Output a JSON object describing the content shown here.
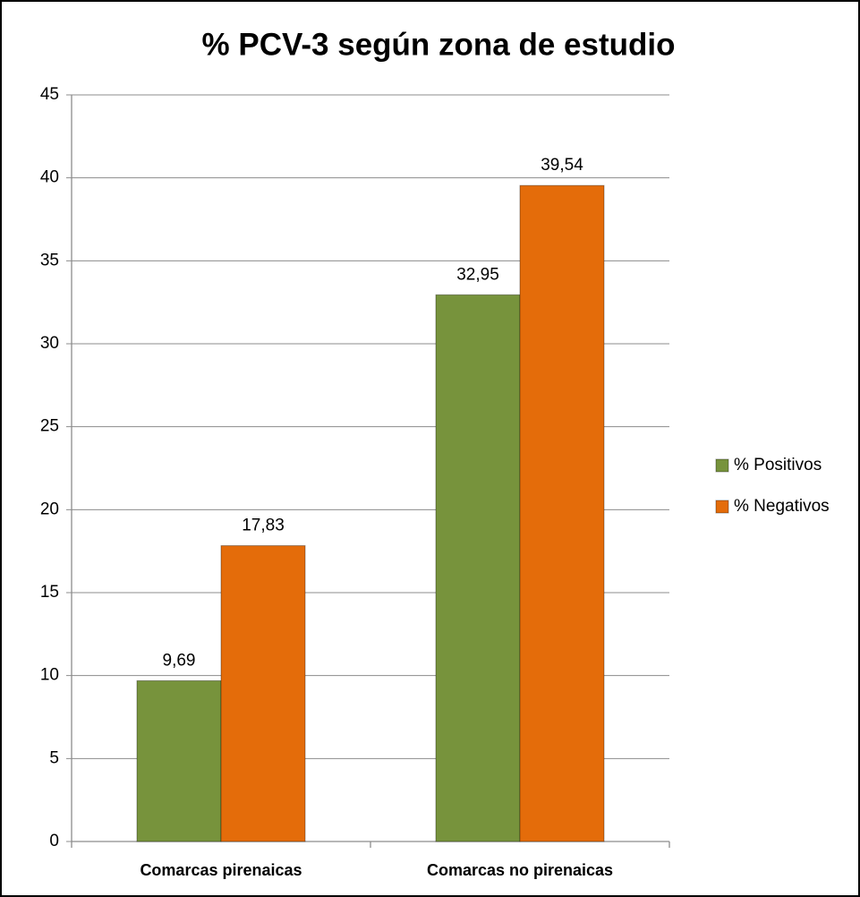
{
  "chart_data": {
    "type": "bar",
    "title": "% PCV-3 según zona de estudio",
    "categories": [
      "Comarcas pirenaicas",
      "Comarcas no pirenaicas"
    ],
    "series": [
      {
        "name": "% Positivos",
        "color": "#77933c",
        "values": [
          9.69,
          32.95
        ],
        "value_labels": [
          "9,69",
          "32,95"
        ]
      },
      {
        "name": "% Negativos",
        "color": "#e46c0a",
        "values": [
          17.83,
          39.54
        ],
        "value_labels": [
          "17,83",
          "39,54"
        ]
      }
    ],
    "ylim": [
      0,
      45
    ],
    "yticks": [
      0,
      5,
      10,
      15,
      20,
      25,
      30,
      35,
      40,
      45
    ],
    "grid": true,
    "legend": "right"
  }
}
